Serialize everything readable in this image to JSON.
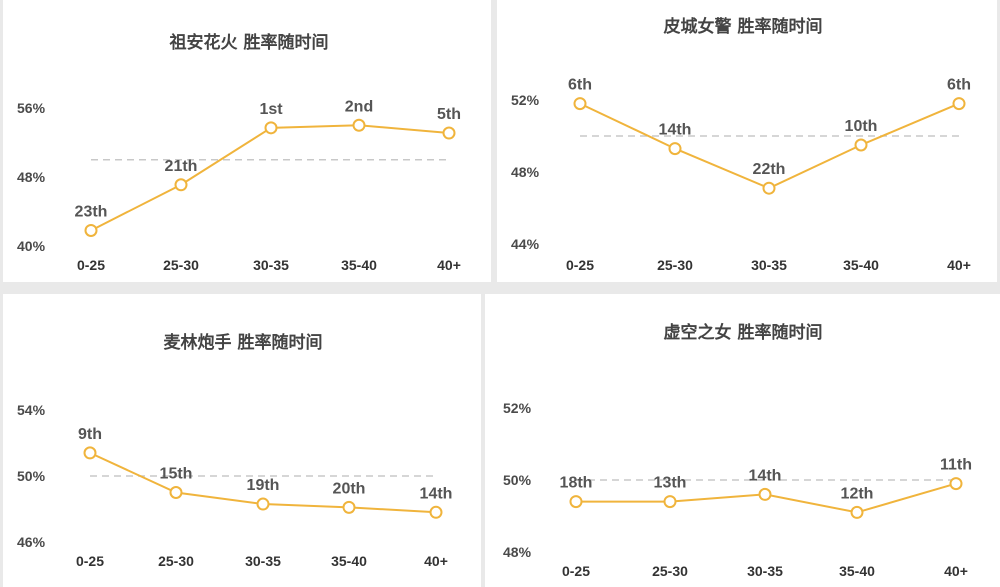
{
  "style": {
    "line_color": "#f0b43c",
    "marker_fill": "#ffffff",
    "reference_line_color": "#c8c8c8",
    "background": "#ffffff"
  },
  "chart_data": [
    {
      "type": "line",
      "title": "祖安花火 胜率随时间",
      "categories": [
        "0-25",
        "25-30",
        "30-35",
        "35-40",
        "40+"
      ],
      "values": [
        41.8,
        47.1,
        53.7,
        54.0,
        53.1
      ],
      "point_labels": [
        "23th",
        "21th",
        "1st",
        "2nd",
        "5th"
      ],
      "yticks": [
        "40%",
        "48%",
        "56%"
      ],
      "ylim": [
        40,
        56
      ],
      "reference_line": 50,
      "grid": false
    },
    {
      "type": "line",
      "title": "皮城女警 胜率随时间",
      "categories": [
        "0-25",
        "25-30",
        "30-35",
        "35-40",
        "40+"
      ],
      "values": [
        51.8,
        49.3,
        47.1,
        49.5,
        51.8
      ],
      "point_labels": [
        "6th",
        "14th",
        "22th",
        "10th",
        "6th"
      ],
      "yticks": [
        "44%",
        "48%",
        "52%"
      ],
      "ylim": [
        44,
        52
      ],
      "reference_line": 50,
      "grid": false
    },
    {
      "type": "line",
      "title": "麦林炮手 胜率随时间",
      "categories": [
        "0-25",
        "25-30",
        "30-35",
        "35-40",
        "40+"
      ],
      "values": [
        51.4,
        49.0,
        48.3,
        48.1,
        47.8
      ],
      "point_labels": [
        "9th",
        "15th",
        "19th",
        "20th",
        "14th"
      ],
      "yticks": [
        "46%",
        "50%",
        "54%"
      ],
      "ylim": [
        46,
        54
      ],
      "reference_line": 50,
      "grid": false
    },
    {
      "type": "line",
      "title": "虚空之女 胜率随时间",
      "categories": [
        "0-25",
        "25-30",
        "30-35",
        "35-40",
        "40+"
      ],
      "values": [
        49.4,
        49.4,
        49.6,
        49.1,
        49.9
      ],
      "point_labels": [
        "18th",
        "13th",
        "14th",
        "12th",
        "11th"
      ],
      "yticks": [
        "48%",
        "50%",
        "52%"
      ],
      "ylim": [
        48,
        52
      ],
      "reference_line": 50,
      "grid": false
    }
  ]
}
